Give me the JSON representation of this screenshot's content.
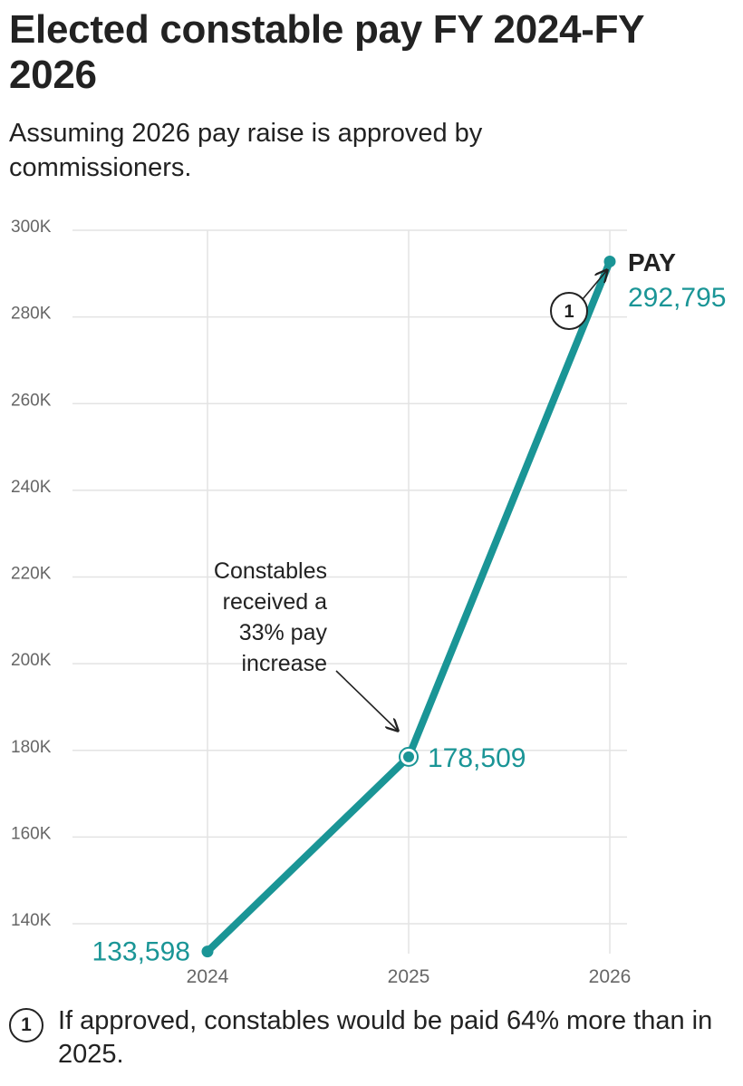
{
  "header": {
    "title": "Elected constable pay FY 2024-FY 2026",
    "subtitle": "Assuming 2026 pay raise is approved by commissioners."
  },
  "colors": {
    "series": "#1a9596",
    "text": "#222222",
    "axis_text": "#666666",
    "grid": "#e3e3e3"
  },
  "chart_data": {
    "type": "line",
    "title": "Elected constable pay FY 2024-FY 2026",
    "subtitle": "Assuming 2026 pay raise is approved by commissioners.",
    "x": [
      "2024",
      "2025",
      "2026"
    ],
    "series": [
      {
        "name": "PAY",
        "values": [
          133598,
          178509,
          292795
        ],
        "value_labels": [
          "133,598",
          "178,509",
          "292,795"
        ]
      }
    ],
    "ylim": [
      137000,
      300000
    ],
    "yticks": [
      140000,
      160000,
      180000,
      200000,
      220000,
      240000,
      260000,
      280000,
      300000
    ],
    "ytick_labels": [
      "140K",
      "160K",
      "180K",
      "200K",
      "220K",
      "240K",
      "260K",
      "280K",
      "300K"
    ],
    "xlabel": "",
    "ylabel": "",
    "grid": true,
    "annotations": [
      {
        "target": "2025",
        "lines": [
          "Constables",
          "received a",
          "33% pay",
          "increase"
        ]
      },
      {
        "target": "2026",
        "marker": "1",
        "text": "If approved, constables would be paid 64% more than in 2025."
      }
    ]
  },
  "footnote": {
    "marker": "1",
    "text": "If approved, constables would be paid 64% more than in 2025."
  }
}
